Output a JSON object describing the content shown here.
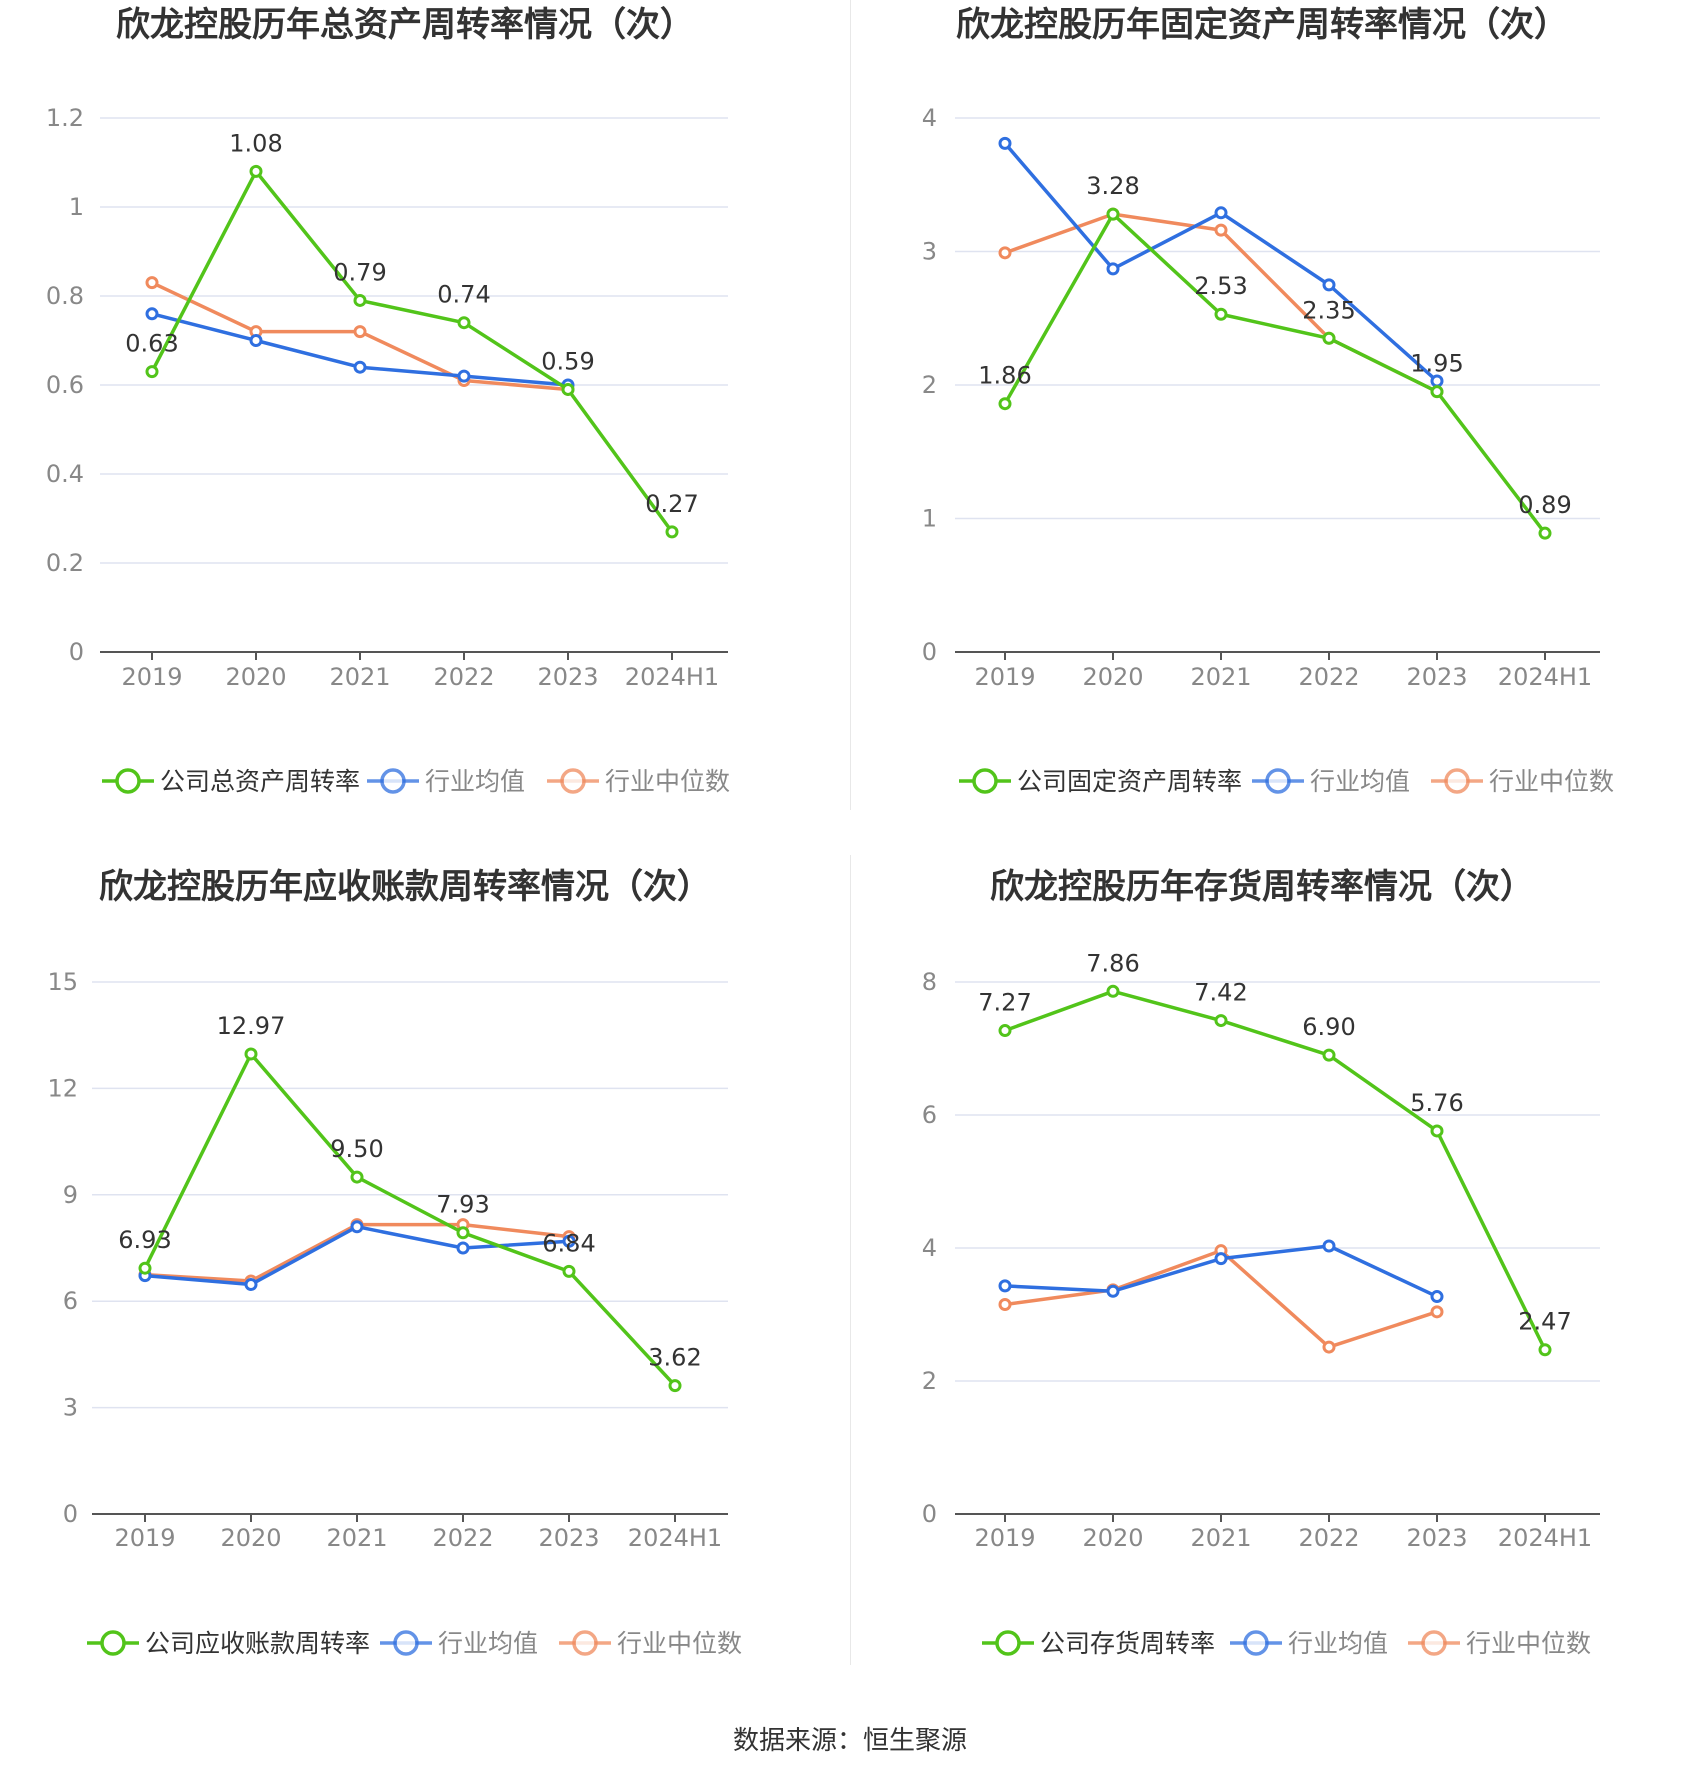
{
  "source_label": "数据来源：恒生聚源",
  "colors": {
    "company": "#52c41a",
    "industry_avg": "#2f6fe0",
    "industry_median": "#f08a5d",
    "grid": "#dfe3f0",
    "axis": "#555555",
    "tick_text": "#888888",
    "title_text": "#333333"
  },
  "chart_data": [
    {
      "type": "line",
      "title": "欣龙控股历年总资产周转率情况（次）",
      "categories": [
        "2019",
        "2020",
        "2021",
        "2022",
        "2023",
        "2024H1"
      ],
      "yticks": [
        "0",
        "0.2",
        "0.4",
        "0.6",
        "0.8",
        "1",
        "1.2"
      ],
      "ylim": [
        0,
        1.2
      ],
      "grid": true,
      "legend_position": "bottom",
      "series": [
        {
          "name": "公司总资产周转率",
          "role": "company",
          "values": [
            0.63,
            1.08,
            0.79,
            0.74,
            0.59,
            0.27
          ],
          "labels": [
            "0.63",
            "1.08",
            "0.79",
            "0.74",
            "0.59",
            "0.27"
          ]
        },
        {
          "name": "行业均值",
          "role": "industry_avg",
          "values": [
            0.76,
            0.7,
            0.64,
            0.62,
            0.6,
            null
          ]
        },
        {
          "name": "行业中位数",
          "role": "industry_median",
          "values": [
            0.83,
            0.72,
            0.72,
            0.61,
            0.59,
            null
          ]
        }
      ]
    },
    {
      "type": "line",
      "title": "欣龙控股历年固定资产周转率情况（次）",
      "categories": [
        "2019",
        "2020",
        "2021",
        "2022",
        "2023",
        "2024H1"
      ],
      "yticks": [
        "0",
        "1",
        "2",
        "3",
        "4"
      ],
      "ylim": [
        0,
        4
      ],
      "grid": true,
      "legend_position": "bottom",
      "series": [
        {
          "name": "公司固定资产周转率",
          "role": "company",
          "values": [
            1.86,
            3.28,
            2.53,
            2.35,
            1.95,
            0.89
          ],
          "labels": [
            "1.86",
            "3.28",
            "2.53",
            "2.35",
            "1.95",
            "0.89"
          ]
        },
        {
          "name": "行业均值",
          "role": "industry_avg",
          "values": [
            3.81,
            2.87,
            3.29,
            2.75,
            2.03,
            null
          ]
        },
        {
          "name": "行业中位数",
          "role": "industry_median",
          "values": [
            2.99,
            3.28,
            3.16,
            2.35,
            1.95,
            null
          ]
        }
      ]
    },
    {
      "type": "line",
      "title": "欣龙控股历年应收账款周转率情况（次）",
      "categories": [
        "2019",
        "2020",
        "2021",
        "2022",
        "2023",
        "2024H1"
      ],
      "yticks": [
        "0",
        "3",
        "6",
        "9",
        "12",
        "15"
      ],
      "ylim": [
        0,
        15
      ],
      "grid": true,
      "legend_position": "bottom",
      "series": [
        {
          "name": "公司应收账款周转率",
          "role": "company",
          "values": [
            6.93,
            12.97,
            9.5,
            7.93,
            6.84,
            3.62
          ],
          "labels": [
            "6.93",
            "12.97",
            "9.50",
            "7.93",
            "6.84",
            "3.62"
          ]
        },
        {
          "name": "行业均值",
          "role": "industry_avg",
          "values": [
            6.72,
            6.47,
            8.1,
            7.5,
            7.69,
            null
          ]
        },
        {
          "name": "行业中位数",
          "role": "industry_median",
          "values": [
            6.75,
            6.57,
            8.16,
            8.16,
            7.82,
            null
          ]
        }
      ]
    },
    {
      "type": "line",
      "title": "欣龙控股历年存货周转率情况（次）",
      "categories": [
        "2019",
        "2020",
        "2021",
        "2022",
        "2023",
        "2024H1"
      ],
      "yticks": [
        "0",
        "2",
        "4",
        "6",
        "8"
      ],
      "ylim": [
        0,
        8
      ],
      "grid": true,
      "legend_position": "bottom",
      "series": [
        {
          "name": "公司存货周转率",
          "role": "company",
          "values": [
            7.27,
            7.86,
            7.42,
            6.9,
            5.76,
            2.47
          ],
          "labels": [
            "7.27",
            "7.86",
            "7.42",
            "6.90",
            "5.76",
            "2.47"
          ]
        },
        {
          "name": "行业均值",
          "role": "industry_avg",
          "values": [
            3.43,
            3.35,
            3.84,
            4.03,
            3.27,
            null
          ]
        },
        {
          "name": "行业中位数",
          "role": "industry_median",
          "values": [
            3.15,
            3.37,
            3.96,
            2.51,
            3.04,
            null
          ]
        }
      ]
    }
  ]
}
